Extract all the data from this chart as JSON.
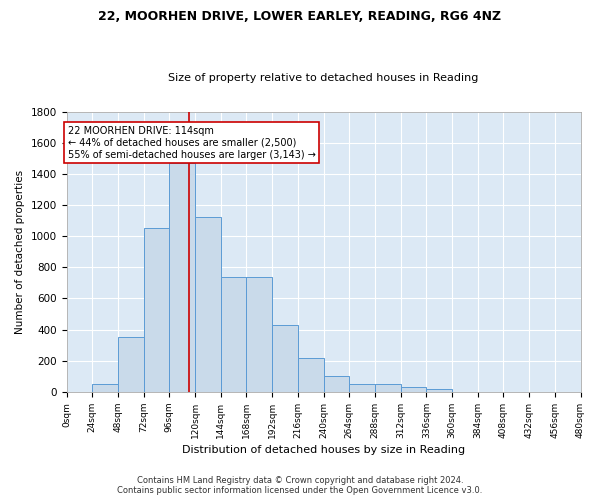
{
  "title1": "22, MOORHEN DRIVE, LOWER EARLEY, READING, RG6 4NZ",
  "title2": "Size of property relative to detached houses in Reading",
  "xlabel": "Distribution of detached houses by size in Reading",
  "ylabel": "Number of detached properties",
  "bar_values": [
    0,
    50,
    350,
    1050,
    1470,
    1120,
    740,
    740,
    430,
    220,
    105,
    50,
    50,
    30,
    20,
    0,
    0,
    0,
    0,
    0
  ],
  "bar_color": "#c9daea",
  "bar_edge_color": "#5b9bd5",
  "x_labels": [
    "0sqm",
    "24sqm",
    "48sqm",
    "72sqm",
    "96sqm",
    "120sqm",
    "144sqm",
    "168sqm",
    "192sqm",
    "216sqm",
    "240sqm",
    "264sqm",
    "288sqm",
    "312sqm",
    "336sqm",
    "360sqm",
    "384sqm",
    "408sqm",
    "432sqm",
    "456sqm",
    "480sqm"
  ],
  "bin_width": 24,
  "property_size": 114,
  "vline_color": "#cc0000",
  "annotation_line1": "22 MOORHEN DRIVE: 114sqm",
  "annotation_line2": "← 44% of detached houses are smaller (2,500)",
  "annotation_line3": "55% of semi-detached houses are larger (3,143) →",
  "annotation_box_color": "#ffffff",
  "annotation_box_edge": "#cc0000",
  "ylim": [
    0,
    1800
  ],
  "yticks": [
    0,
    200,
    400,
    600,
    800,
    1000,
    1200,
    1400,
    1600,
    1800
  ],
  "grid_color": "#ffffff",
  "bg_color": "#dce9f5",
  "fig_bg_color": "#ffffff",
  "footer1": "Contains HM Land Registry data © Crown copyright and database right 2024.",
  "footer2": "Contains public sector information licensed under the Open Government Licence v3.0."
}
